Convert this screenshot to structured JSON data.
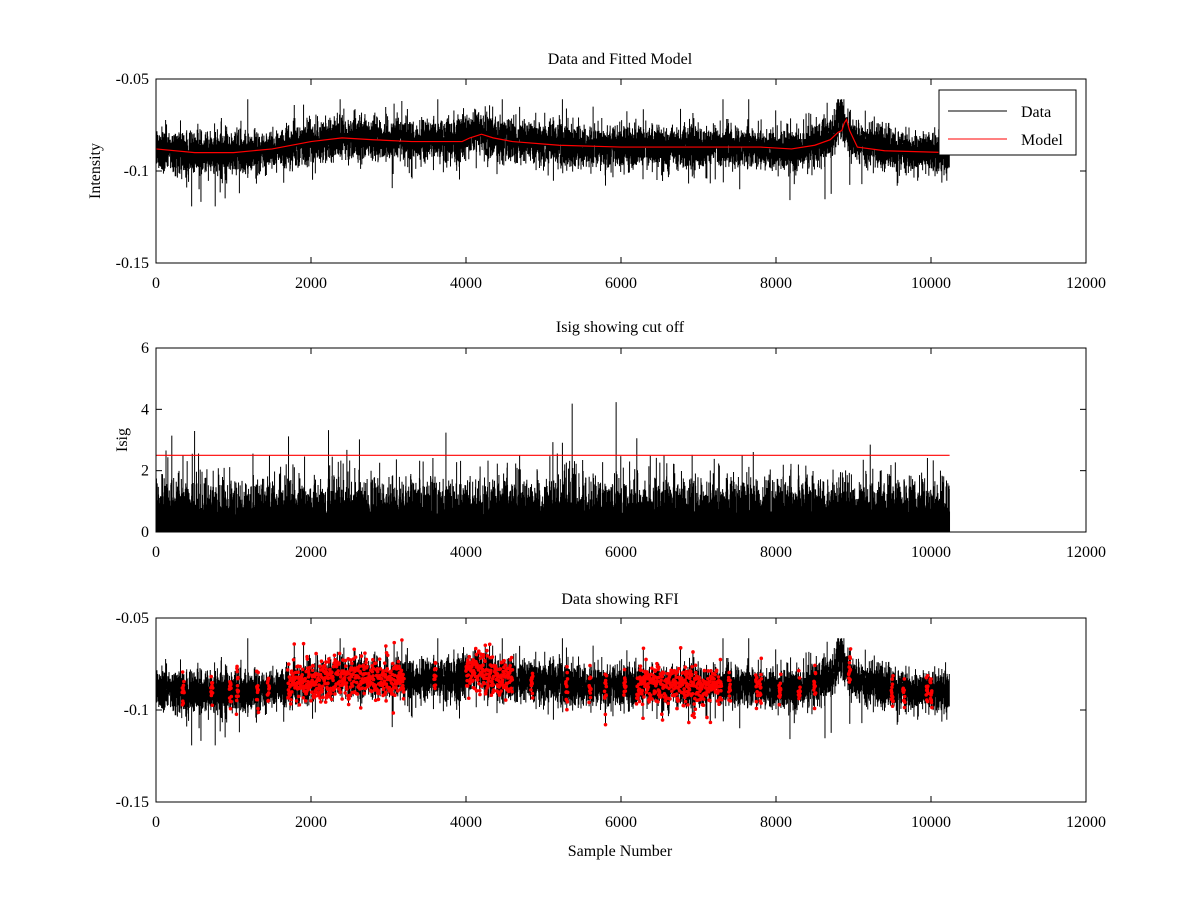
{
  "chart_data": [
    {
      "type": "line",
      "title": "Data and Fitted Model",
      "xlabel": "",
      "ylabel": "Intensity",
      "xlim": [
        0,
        12000
      ],
      "ylim": [
        -0.15,
        -0.05
      ],
      "y_reversed": true,
      "xticks": [
        0,
        2000,
        4000,
        6000,
        8000,
        10000,
        12000
      ],
      "yticks": [
        -0.15,
        -0.1,
        -0.05
      ],
      "ytick_labels": [
        "-0.15",
        "-0.1",
        "-0.05"
      ],
      "legend_position": "top-right",
      "series": [
        {
          "name": "Data",
          "color": "#000000",
          "sample_count": 10240,
          "baseline_points": [
            [
              0,
              -0.088
            ],
            [
              500,
              -0.09
            ],
            [
              1200,
              -0.09
            ],
            [
              2400,
              -0.082
            ],
            [
              3200,
              -0.084
            ],
            [
              3950,
              -0.083
            ],
            [
              4100,
              -0.079
            ],
            [
              4500,
              -0.083
            ],
            [
              5000,
              -0.086
            ],
            [
              6000,
              -0.087
            ],
            [
              7500,
              -0.087
            ],
            [
              8300,
              -0.089
            ],
            [
              8600,
              -0.084
            ],
            [
              8750,
              -0.08
            ],
            [
              8850,
              -0.071
            ],
            [
              8950,
              -0.082
            ],
            [
              9500,
              -0.089
            ],
            [
              10240,
              -0.09
            ]
          ],
          "noise_sd": 0.007,
          "range": [
            -0.12,
            -0.061
          ]
        },
        {
          "name": "Model",
          "color": "#ff0000",
          "points": [
            [
              0,
              -0.088
            ],
            [
              500,
              -0.09
            ],
            [
              1000,
              -0.09
            ],
            [
              1500,
              -0.088
            ],
            [
              2000,
              -0.084
            ],
            [
              2400,
              -0.082
            ],
            [
              2800,
              -0.083
            ],
            [
              3300,
              -0.084
            ],
            [
              3950,
              -0.084
            ],
            [
              4050,
              -0.082
            ],
            [
              4200,
              -0.08
            ],
            [
              4350,
              -0.082
            ],
            [
              4600,
              -0.084
            ],
            [
              5200,
              -0.086
            ],
            [
              6000,
              -0.087
            ],
            [
              7000,
              -0.087
            ],
            [
              7800,
              -0.087
            ],
            [
              8200,
              -0.088
            ],
            [
              8500,
              -0.086
            ],
            [
              8700,
              -0.083
            ],
            [
              8800,
              -0.079
            ],
            [
              8850,
              -0.078
            ],
            [
              8880,
              -0.074
            ],
            [
              8910,
              -0.072
            ],
            [
              8950,
              -0.078
            ],
            [
              9050,
              -0.087
            ],
            [
              9400,
              -0.089
            ],
            [
              10240,
              -0.09
            ]
          ]
        }
      ]
    },
    {
      "type": "line",
      "title": "Isig showing cut off",
      "xlabel": "",
      "ylabel": "Isig",
      "xlim": [
        0,
        12000
      ],
      "ylim": [
        0,
        6
      ],
      "xticks": [
        0,
        2000,
        4000,
        6000,
        8000,
        10000,
        12000
      ],
      "yticks": [
        0,
        2,
        4,
        6
      ],
      "series": [
        {
          "name": "Isig",
          "color": "#000000",
          "sample_count": 10240,
          "range": [
            0,
            4.3
          ]
        }
      ],
      "cutoff": {
        "value": 2.5,
        "x_range": [
          0,
          10240
        ],
        "color": "#ff0000"
      }
    },
    {
      "type": "scatter",
      "title": "Data showing RFI",
      "xlabel": "Sample Number",
      "ylabel": "",
      "xlim": [
        0,
        12000
      ],
      "ylim": [
        -0.15,
        -0.05
      ],
      "y_reversed": true,
      "xticks": [
        0,
        2000,
        4000,
        6000,
        8000,
        10000,
        12000
      ],
      "yticks": [
        -0.15,
        -0.1,
        -0.05
      ],
      "ytick_labels": [
        "-0.15",
        "-0.1",
        "-0.05"
      ],
      "series": [
        {
          "name": "Data",
          "color": "#000000",
          "sample_count": 10240
        },
        {
          "name": "RFI",
          "color": "#ff0000",
          "marker": "dot",
          "flagged_regions": [
            [
              1700,
              3200
            ],
            [
              4000,
              4600
            ],
            [
              6200,
              7300
            ]
          ],
          "isolated_flags": [
            350,
            720,
            960,
            1050,
            1310,
            1450,
            3600,
            4850,
            5300,
            5600,
            5800,
            6050,
            7400,
            7750,
            7800,
            8050,
            8300,
            8500,
            8950,
            9500,
            9650,
            9950,
            10000
          ]
        }
      ]
    }
  ]
}
